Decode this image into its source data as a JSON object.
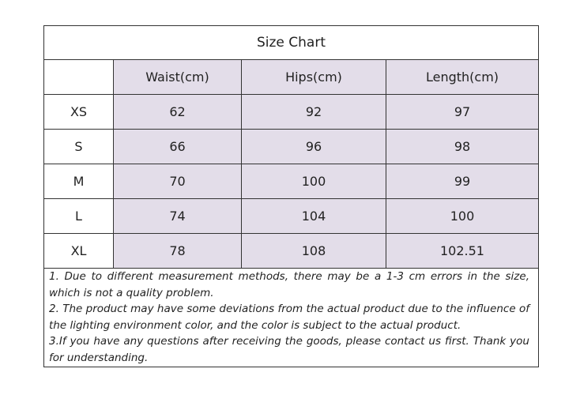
{
  "table": {
    "title": "Size  Chart",
    "header": [
      "Waist(cm)",
      "Hips(cm)",
      "Length(cm)"
    ],
    "rows": [
      [
        "XS",
        62,
        92,
        97
      ],
      [
        "S",
        66,
        96,
        98
      ],
      [
        "M",
        70,
        100,
        99
      ],
      [
        "L",
        74,
        104,
        100
      ],
      [
        "XL",
        78,
        108,
        102.51
      ]
    ],
    "notes": [
      "1. Due to different measurement methods, there may be a 1-3 cm errors in the size, which is not a quality problem.",
      "2. The product may have some deviations from the actual product due to the influence of the lighting environment color, and the color is subject to the actual product.",
      "3.If you have any questions after receiving the goods, please contact us first. Thank you for understanding."
    ]
  }
}
